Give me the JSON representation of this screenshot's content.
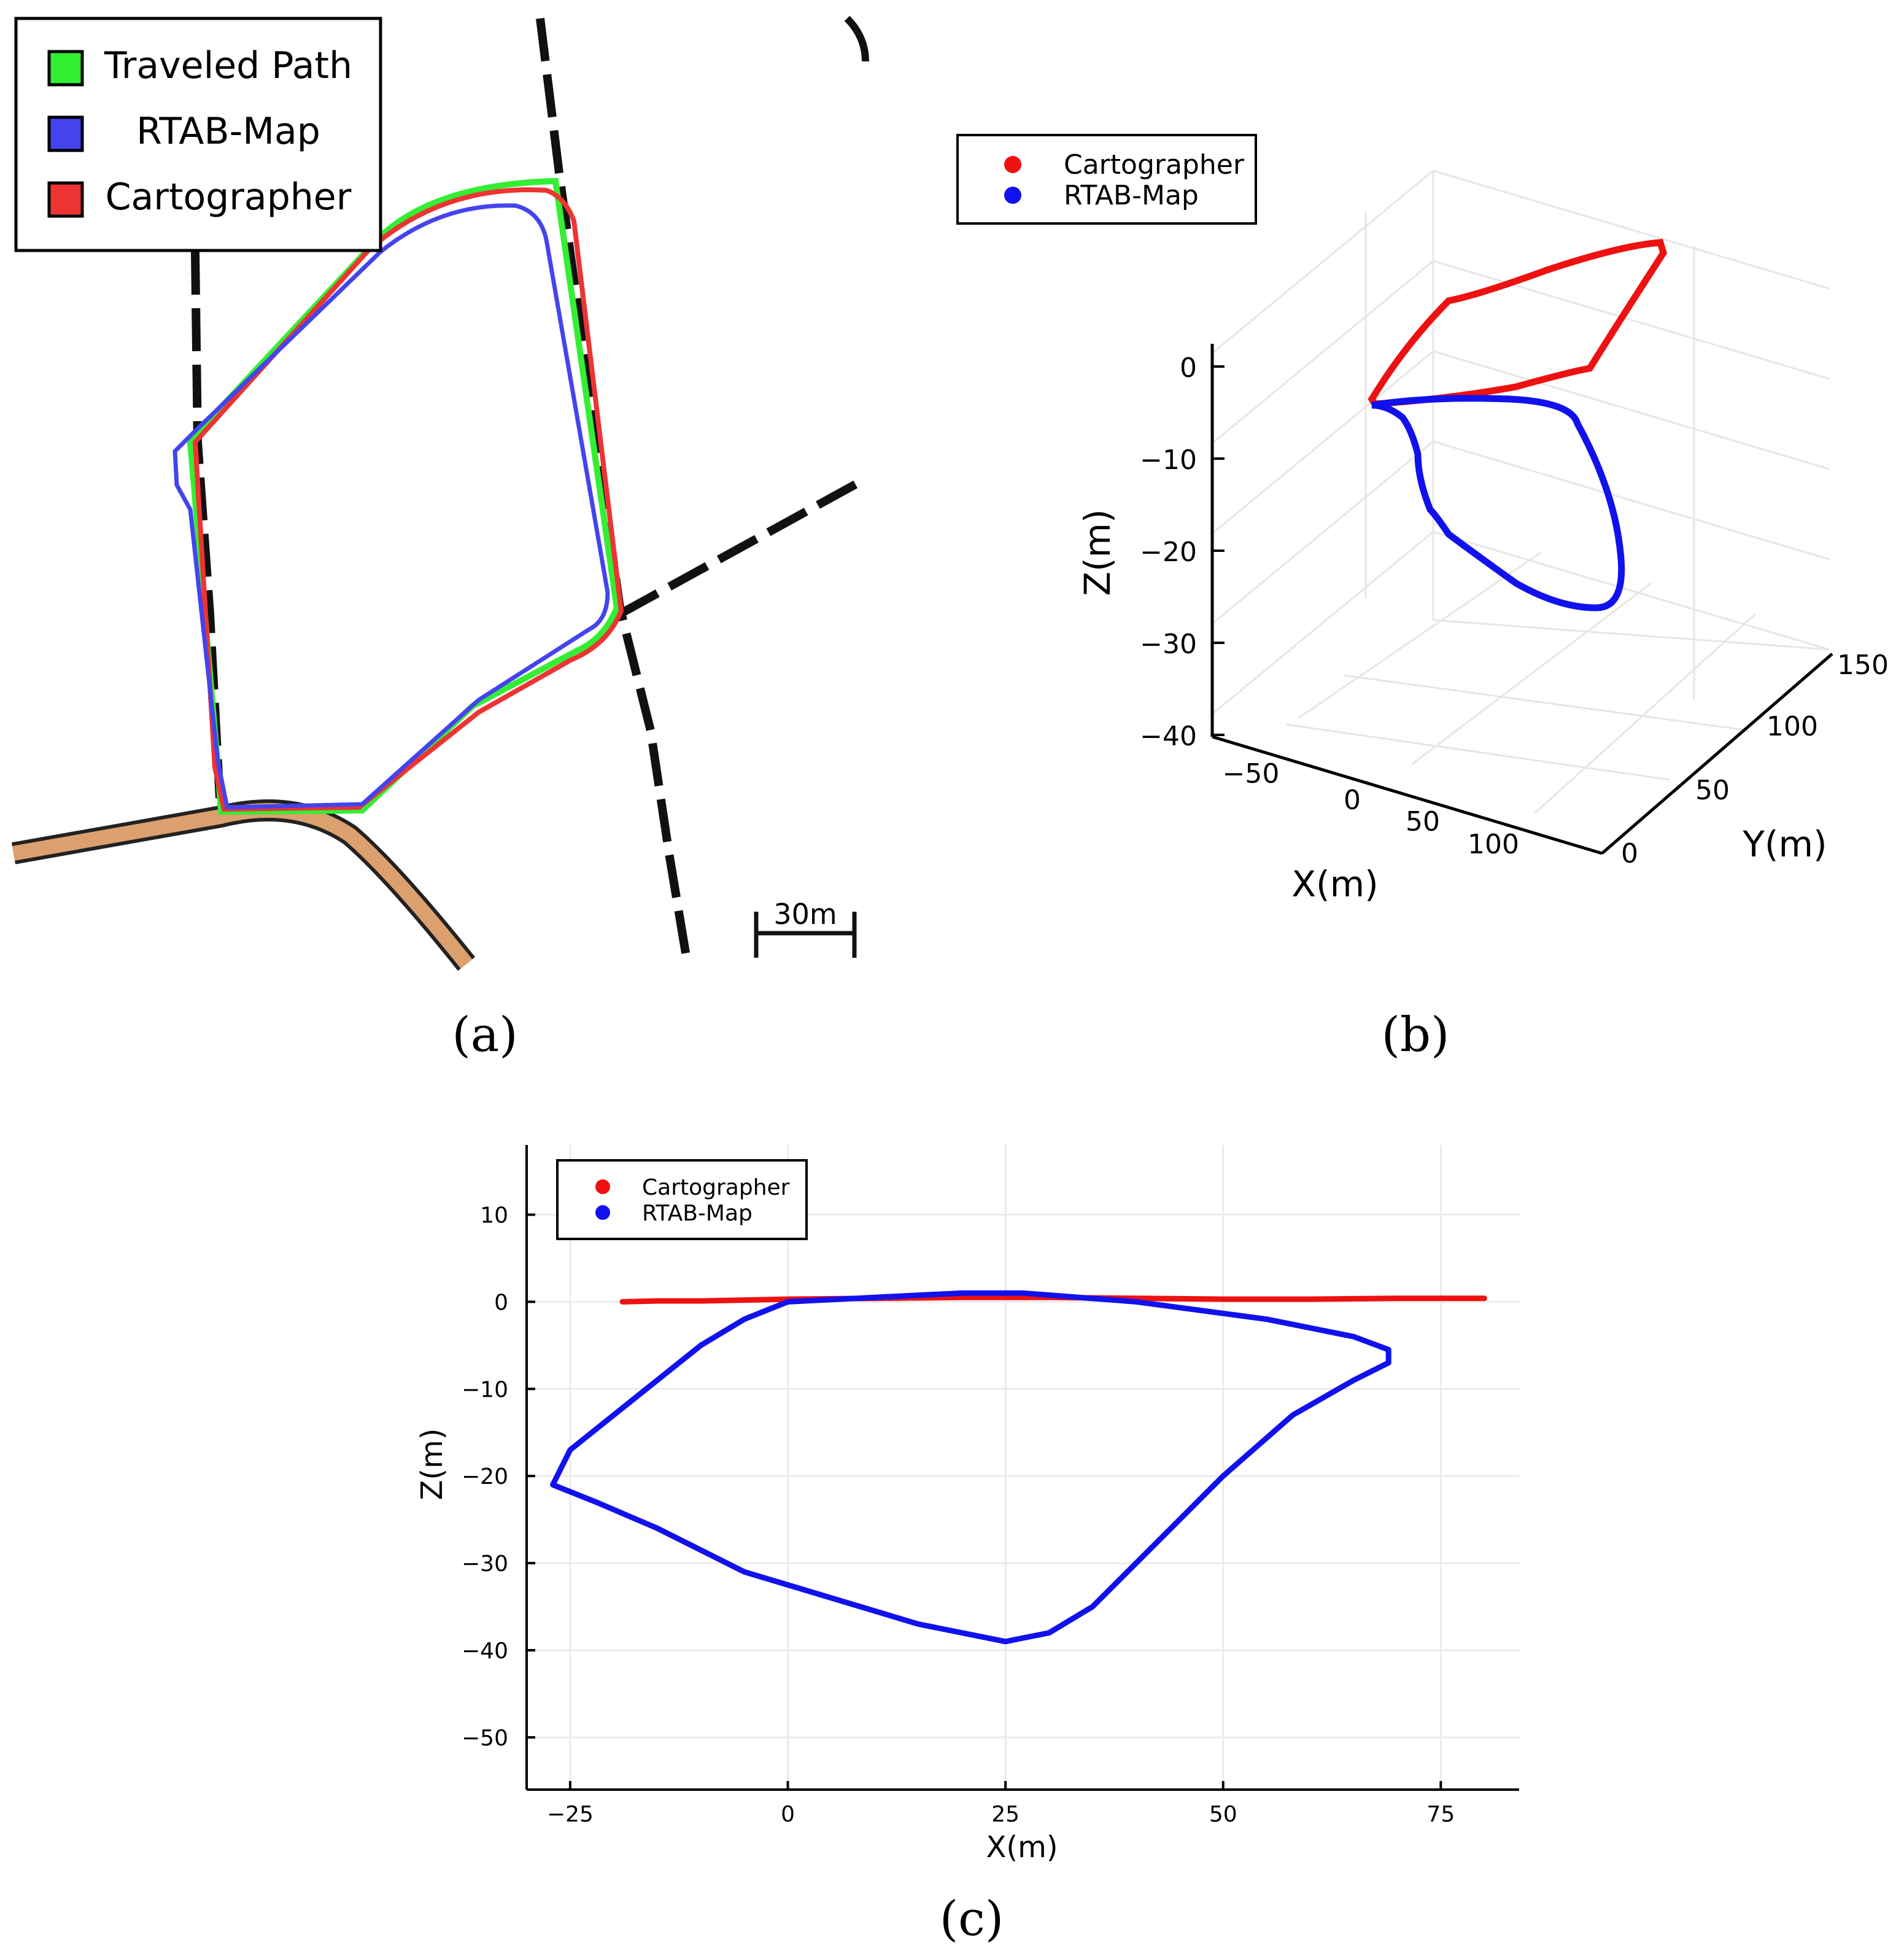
{
  "panel_a": {
    "caption": "(a)",
    "scale_label": "30m",
    "legend": [
      {
        "label": "Traveled Path",
        "color": "#33ee33"
      },
      {
        "label": "RTAB-Map",
        "color": "#4444ee"
      },
      {
        "label": "Cartographer",
        "color": "#ee3333"
      }
    ],
    "road_color": "#dca06e"
  },
  "panel_b": {
    "caption": "(b)",
    "xlabel": "X(m)",
    "ylabel": "Y(m)",
    "zlabel": "Z(m)",
    "x_ticks": [
      "−50",
      "0",
      "50",
      "100"
    ],
    "y_ticks": [
      "0",
      "50",
      "100",
      "150"
    ],
    "z_ticks": [
      "0",
      "−10",
      "−20",
      "−30",
      "−40"
    ],
    "legend": [
      {
        "label": "Cartographer",
        "color": "#ee1111"
      },
      {
        "label": "RTAB-Map",
        "color": "#1111ee"
      }
    ]
  },
  "panel_c": {
    "caption": "(c)",
    "xlabel": "X(m)",
    "ylabel": "Z(m)",
    "x_ticks": [
      "−25",
      "0",
      "25",
      "50",
      "75"
    ],
    "y_ticks": [
      "10",
      "0",
      "−10",
      "−20",
      "−30",
      "−40",
      "−50"
    ],
    "legend": [
      {
        "label": "Cartographer",
        "color": "#ee1111"
      },
      {
        "label": "RTAB-Map",
        "color": "#1111ee"
      }
    ]
  },
  "chart_data": [
    {
      "type": "scatter",
      "title": "",
      "xlabel": "X(m)",
      "ylabel": "Z(m)",
      "xlim": [
        -30,
        84
      ],
      "ylim": [
        -56,
        18
      ],
      "grid": true,
      "legend_position": "top-left",
      "series": [
        {
          "name": "Cartographer",
          "color": "#ee1111",
          "x": [
            -19,
            -15,
            -10,
            -5,
            0,
            10,
            20,
            30,
            40,
            50,
            60,
            70,
            80
          ],
          "y": [
            0,
            0.1,
            0.1,
            0.2,
            0.3,
            0.4,
            0.5,
            0.5,
            0.4,
            0.3,
            0.3,
            0.4,
            0.4
          ]
        },
        {
          "name": "RTAB-Map",
          "color": "#1111ee",
          "x": [
            0,
            10,
            20,
            27,
            40,
            55,
            65,
            69,
            69,
            65,
            58,
            50,
            42,
            35,
            30,
            25,
            15,
            5,
            -5,
            -15,
            -22,
            -27,
            -25,
            -20,
            -15,
            -10,
            -5,
            0
          ],
          "y": [
            0,
            0.5,
            1,
            1,
            0,
            -2,
            -4,
            -5.5,
            -7,
            -9,
            -13,
            -20,
            -28,
            -35,
            -38,
            -39,
            -37,
            -34,
            -31,
            -26,
            -23,
            -21,
            -17,
            -13,
            -9,
            -5,
            -2,
            0
          ]
        }
      ]
    },
    {
      "type": "line",
      "title": "",
      "xlabel": "X(m)",
      "ylabel": "Y(m)",
      "zlabel": "Z(m)",
      "xlim": [
        -60,
        125
      ],
      "ylim": [
        0,
        150
      ],
      "zlim": [
        -40,
        0
      ],
      "legend_position": "top-left",
      "series": [
        {
          "name": "Cartographer",
          "color": "#ee1111"
        },
        {
          "name": "RTAB-Map",
          "color": "#1111ee"
        }
      ]
    }
  ]
}
